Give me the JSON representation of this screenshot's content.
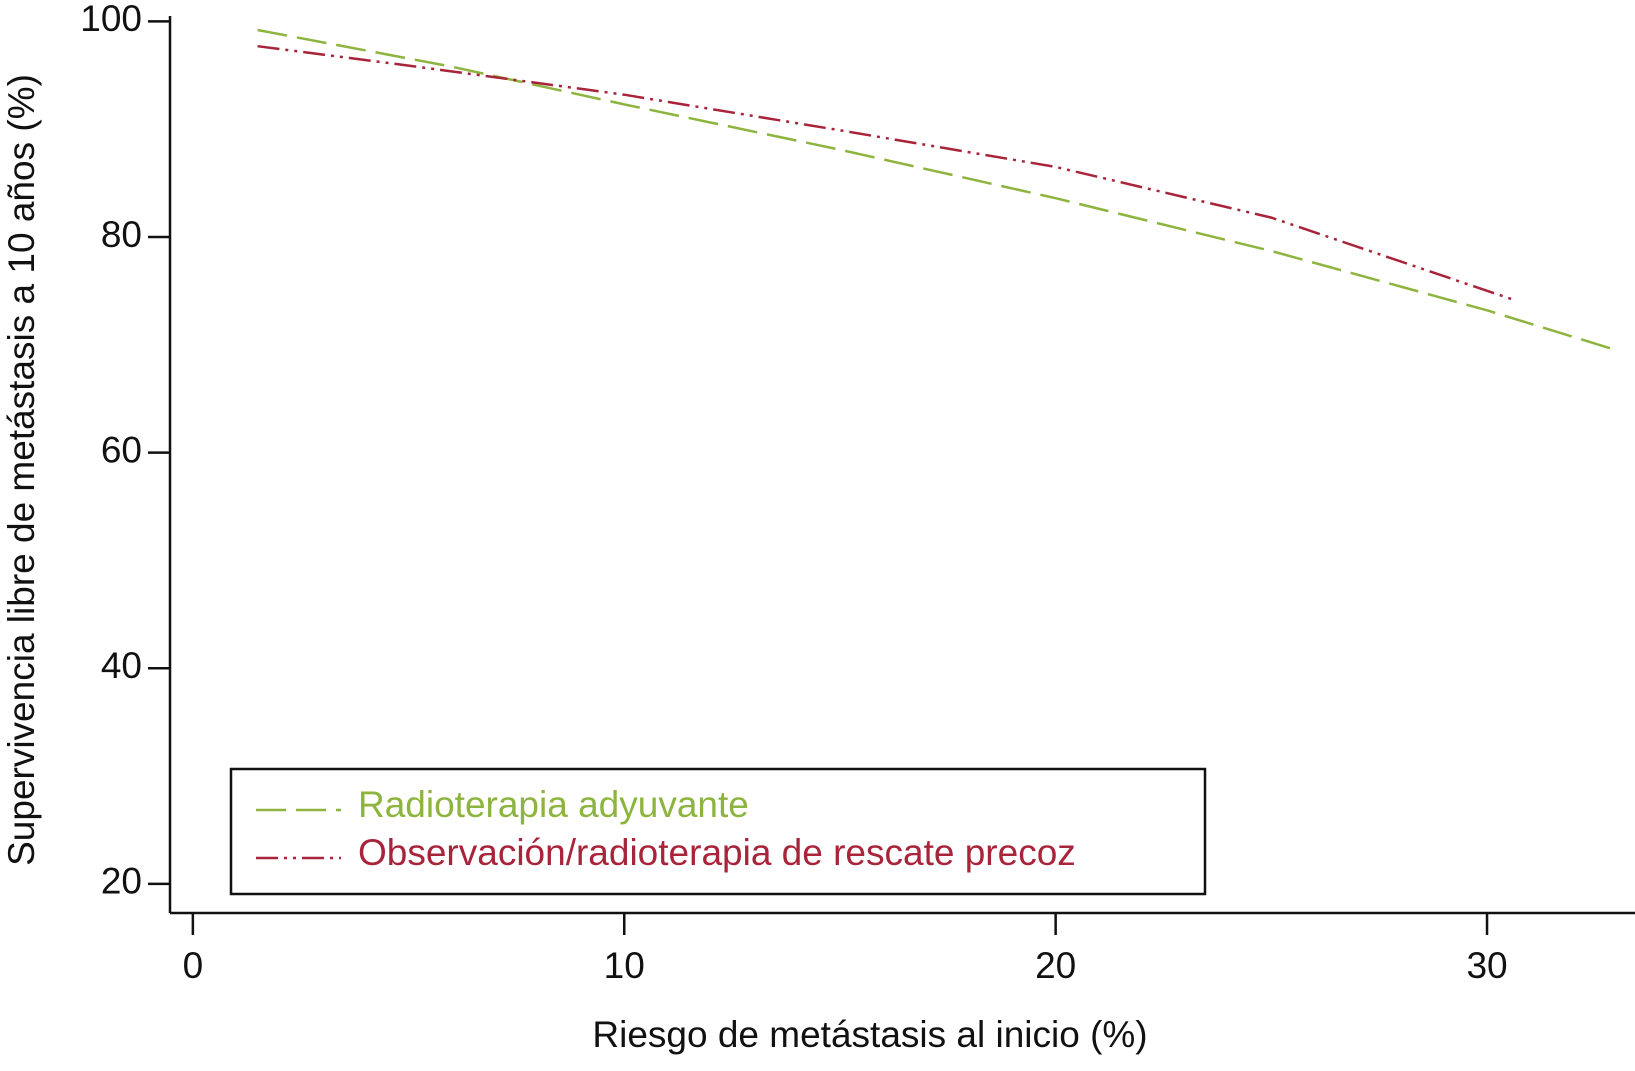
{
  "chart_data": {
    "type": "line",
    "xlabel": "Riesgo de metástasis al inicio (%)",
    "ylabel": "Supervivencia libre de metástasis a 10 años (%)",
    "xlim": [
      -0.53,
      33.43
    ],
    "ylim": [
      17.3,
      100.5
    ],
    "xticks": [
      0,
      10,
      20,
      30
    ],
    "yticks": [
      20,
      40,
      60,
      80,
      100
    ],
    "grid": false,
    "legend": "lower left",
    "series": [
      {
        "name": "Radioterapia adyuvante",
        "color": "#8db43e",
        "dash": "long-dash",
        "x": [
          1.5,
          6,
          10,
          15,
          20,
          25,
          30,
          33
        ],
        "values": [
          99.2,
          95.8,
          92.3,
          88.1,
          83.6,
          78.7,
          73.2,
          69.5
        ]
      },
      {
        "name": "Observación/radioterapia de rescate precoz",
        "color": "#a8243a",
        "dash": "dash-dot-dot",
        "x": [
          1.5,
          5,
          10,
          15,
          20,
          25,
          30.6
        ],
        "values": [
          97.7,
          95.9,
          93.2,
          89.9,
          86.5,
          81.8,
          74.2
        ]
      }
    ]
  }
}
